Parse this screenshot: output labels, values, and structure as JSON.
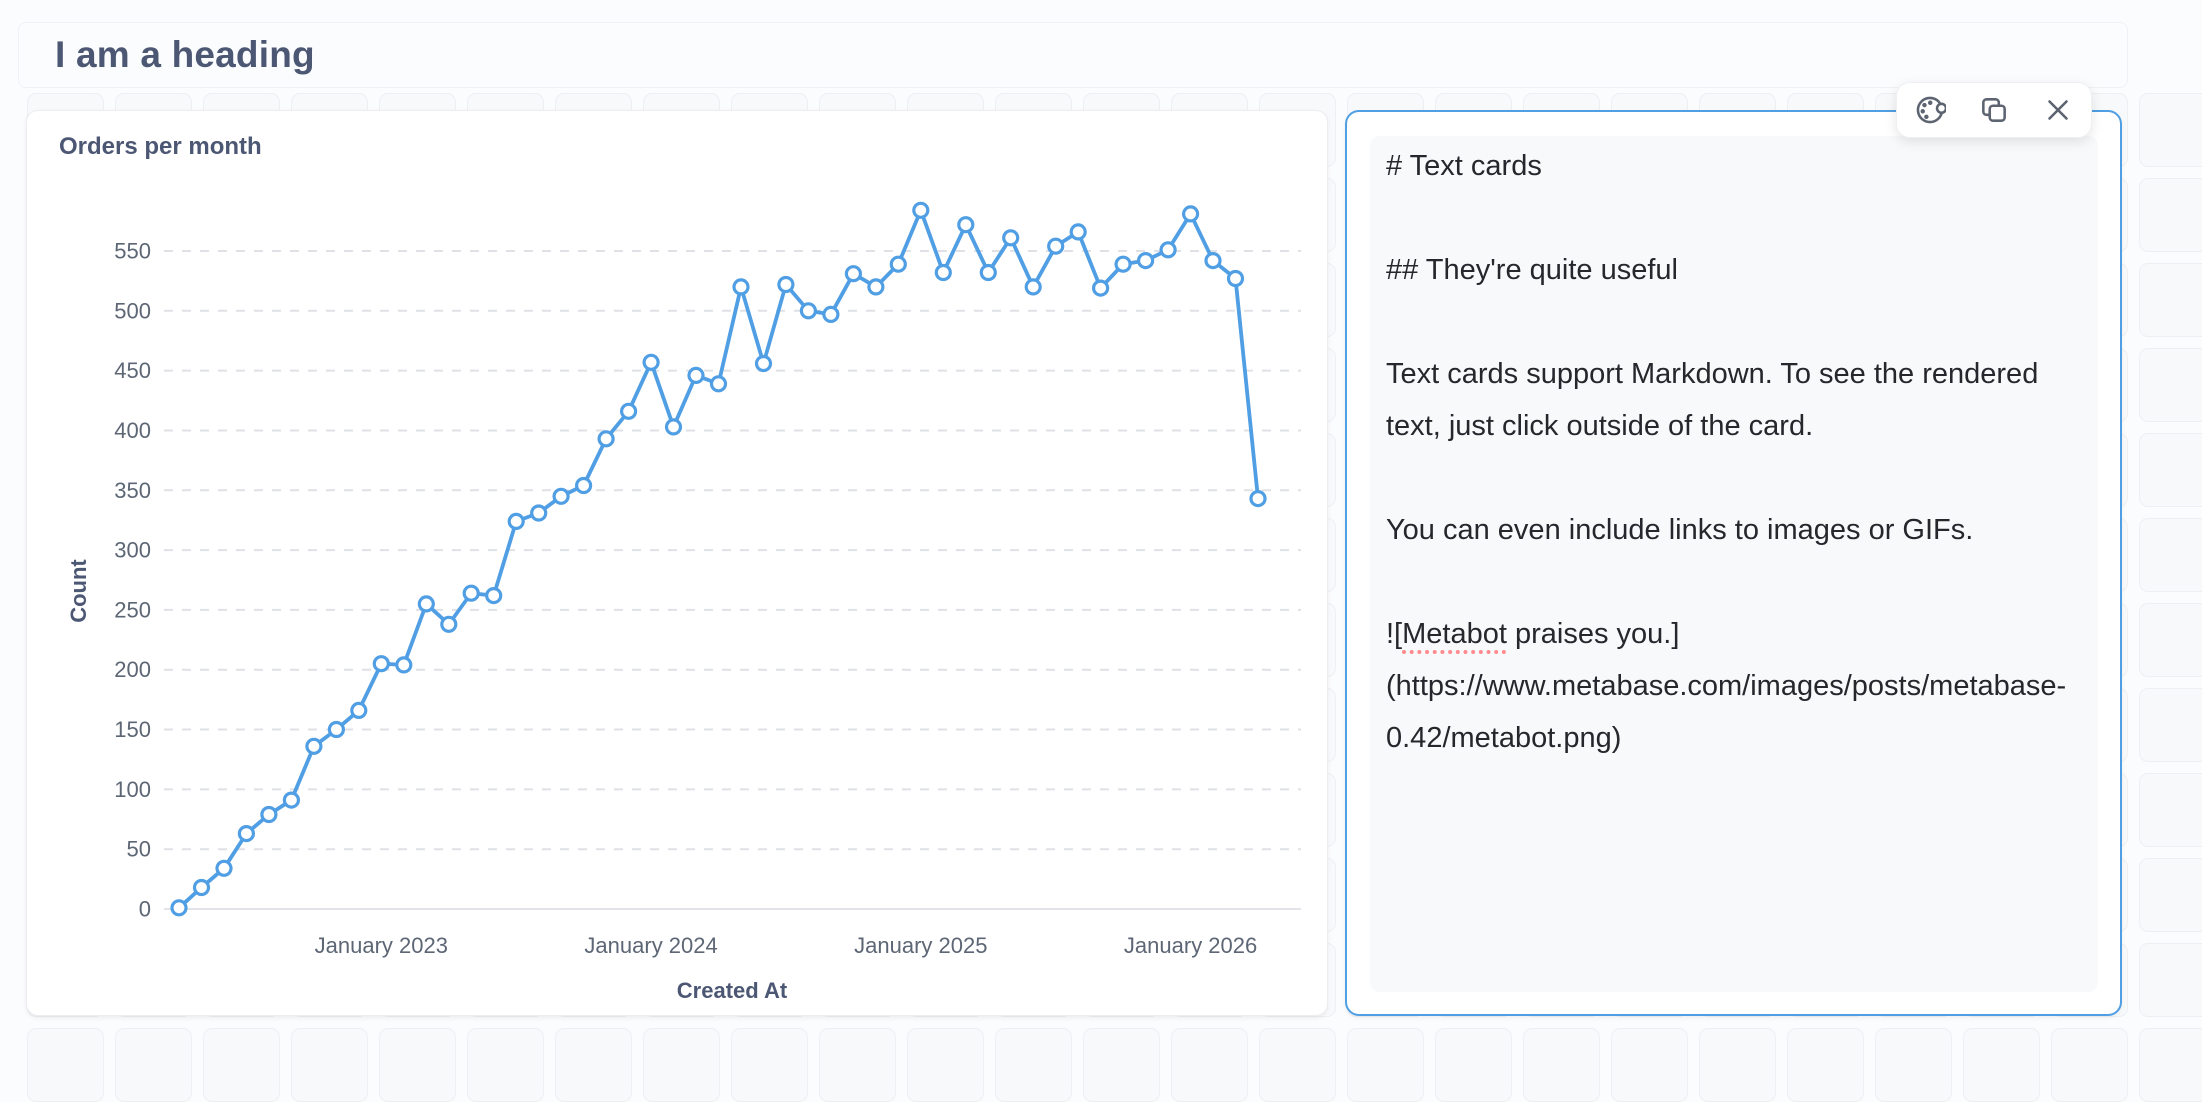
{
  "page": {
    "heading": "I am a heading"
  },
  "chart_data": {
    "type": "line",
    "title": "Orders per month",
    "xlabel": "Created At",
    "ylabel": "Count",
    "x": [
      "Apr 2022",
      "May 2022",
      "Jun 2022",
      "Jul 2022",
      "Aug 2022",
      "Sep 2022",
      "Oct 2022",
      "Nov 2022",
      "Dec 2022",
      "Jan 2023",
      "Feb 2023",
      "Mar 2023",
      "Apr 2023",
      "May 2023",
      "Jun 2023",
      "Jul 2023",
      "Aug 2023",
      "Sep 2023",
      "Oct 2023",
      "Nov 2023",
      "Dec 2023",
      "Jan 2024",
      "Feb 2024",
      "Mar 2024",
      "Apr 2024",
      "May 2024",
      "Jun 2024",
      "Jul 2024",
      "Aug 2024",
      "Sep 2024",
      "Oct 2024",
      "Nov 2024",
      "Dec 2024",
      "Jan 2025",
      "Feb 2025",
      "Mar 2025",
      "Apr 2025",
      "May 2025",
      "Jun 2025",
      "Jul 2025",
      "Aug 2025",
      "Sep 2025",
      "Oct 2025",
      "Nov 2025",
      "Dec 2025",
      "Jan 2026",
      "Feb 2026",
      "Mar 2026",
      "Apr 2026"
    ],
    "values": [
      1,
      18,
      34,
      63,
      79,
      91,
      136,
      150,
      166,
      205,
      204,
      255,
      238,
      264,
      262,
      324,
      331,
      345,
      354,
      393,
      416,
      457,
      403,
      446,
      439,
      520,
      456,
      522,
      500,
      497,
      531,
      520,
      539,
      584,
      532,
      572,
      532,
      561,
      520,
      554,
      566,
      519,
      539,
      542,
      551,
      581,
      542,
      527,
      343
    ],
    "y_ticks": [
      0,
      50,
      100,
      150,
      200,
      250,
      300,
      350,
      400,
      450,
      500,
      550
    ],
    "ylim": [
      0,
      550
    ],
    "x_tick_labels": [
      {
        "index": 9,
        "label": "January 2023"
      },
      {
        "index": 21,
        "label": "January 2024"
      },
      {
        "index": 33,
        "label": "January 2025"
      },
      {
        "index": 45,
        "label": "January 2026"
      }
    ],
    "line_color": "#509ee3",
    "grid": "horizontal-dashed",
    "legend": "none",
    "marker": "open-circle"
  },
  "text_card": {
    "content": "# Text cards\n\n## They're quite useful\n\nText cards support Markdown. To see the rendered text, just click outside of the card.\n\nYou can even include links to images or GIFs.\n\n![Metabot praises you.](https://www.metabase.com/images/posts/metabase-0.42/metabot.png)",
    "misspelled_word": "Metabot"
  },
  "toolbar": {
    "buttons": [
      {
        "icon": "palette"
      },
      {
        "icon": "duplicate"
      },
      {
        "icon": "close"
      }
    ]
  },
  "colors": {
    "brand_blue": "#509ee3",
    "heading_text": "#4c5773",
    "axis_text": "#5d6675",
    "icon_gray": "#5d6471",
    "spellcheck_red": "#ff8b8e"
  }
}
